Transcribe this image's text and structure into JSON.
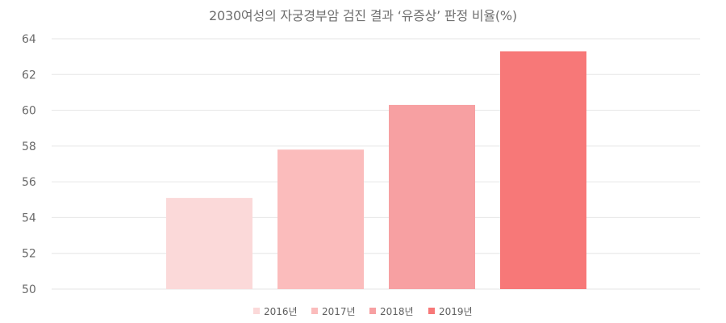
{
  "chart_data": {
    "type": "bar",
    "title": "2030여성의 자궁경부암 검진 결과 ‘유증상’ 판정 비율(%)",
    "xlabel": "",
    "ylabel": "",
    "ylim": [
      50,
      64
    ],
    "yticks": [
      50,
      52,
      54,
      56,
      58,
      60,
      62,
      64
    ],
    "grid": true,
    "legend_position": "bottom",
    "series": [
      {
        "name": "2016년",
        "value": 55.1,
        "color": "#fbd9d9"
      },
      {
        "name": "2017년",
        "value": 57.8,
        "color": "#fbbcbc"
      },
      {
        "name": "2018년",
        "value": 60.3,
        "color": "#f7a0a2"
      },
      {
        "name": "2019년",
        "value": 63.3,
        "color": "#f77878"
      }
    ]
  }
}
